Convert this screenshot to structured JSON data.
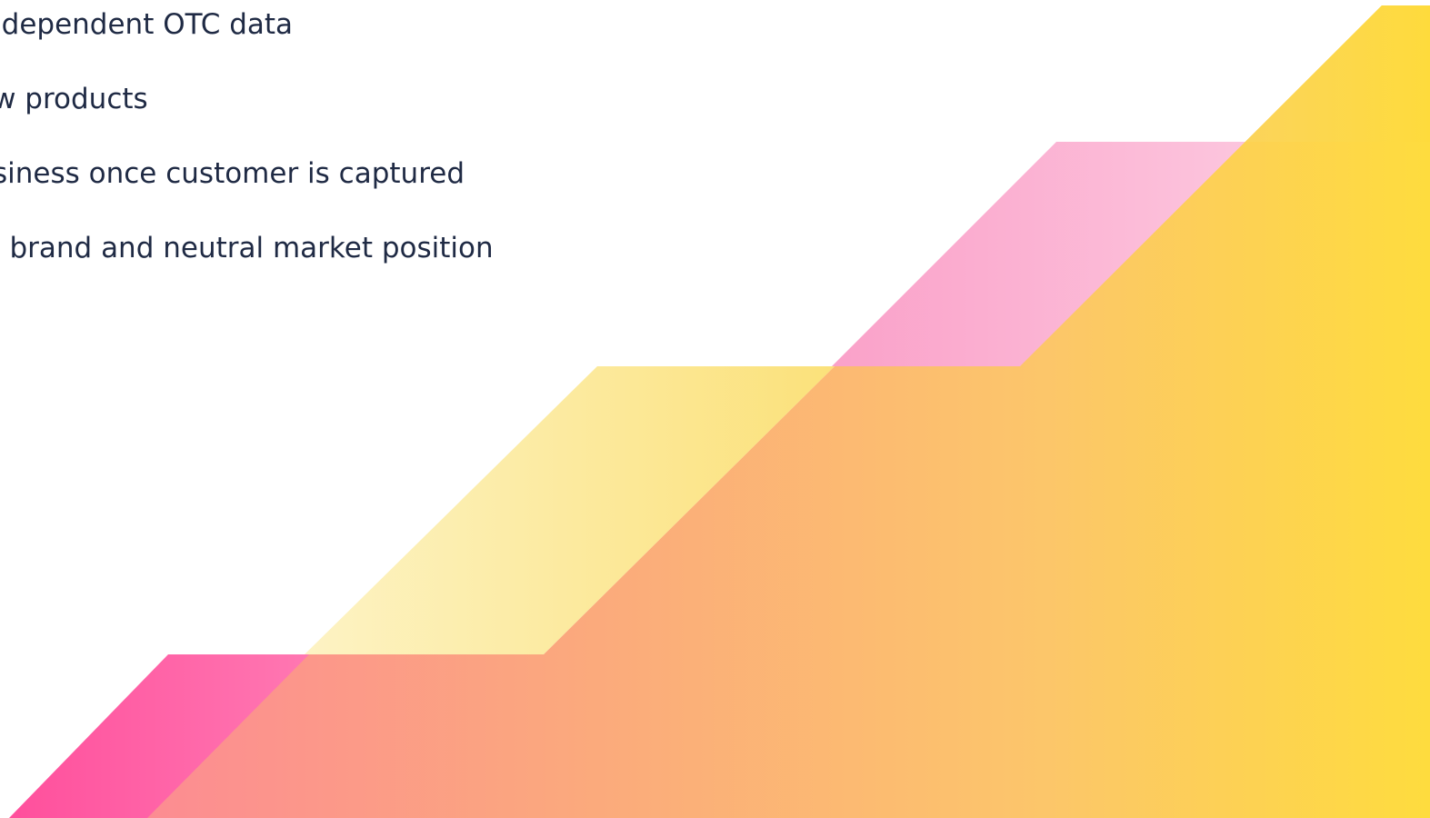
{
  "slide": {
    "bullets": [
      "ndependent OTC data",
      "ew products",
      "siness once customer is captured",
      "l brand and neutral market position"
    ]
  },
  "colors": {
    "text": "#1f2a44",
    "pink_strong": "#ff5fa8",
    "pink_light": "#fbbbd8",
    "yellow_light": "#fbe88c",
    "orange": "#fb9f84",
    "yellow_strong": "#fddc3e"
  }
}
